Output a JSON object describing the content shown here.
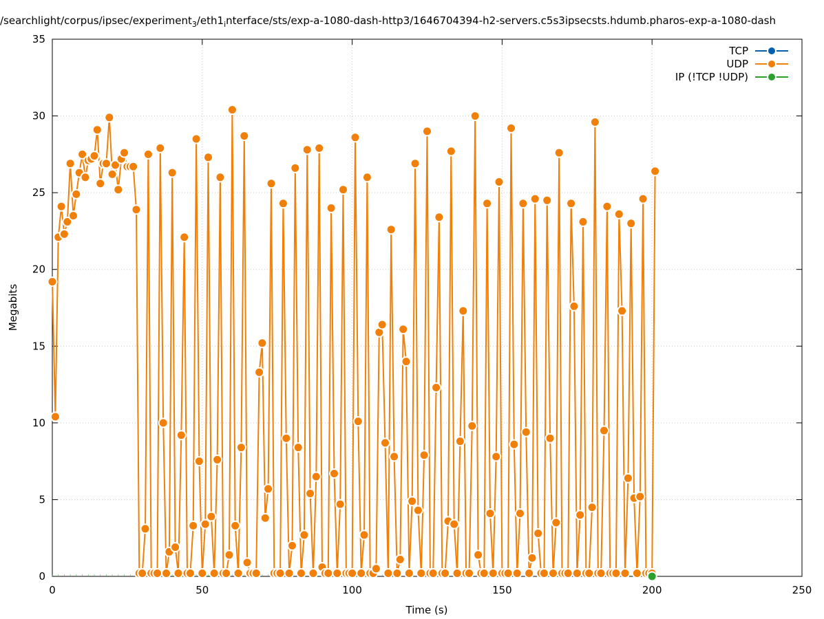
{
  "chart_data": {
    "type": "line",
    "title": "/searchlight/corpus/ipsec/experiment",
    "title_sub": "3",
    "title_mid": "/eth1",
    "title_sub2": "i",
    "title_end": "nterface/sts/exp-a-1080-dash-http3/1646704394-h2-servers.c5s3ipsecsts.hdumb.pharos-exp-a-1080-dash",
    "xlabel": "Time (s)",
    "ylabel": "Megabits",
    "xlim": [
      0,
      250
    ],
    "ylim": [
      0,
      35
    ],
    "xticks": [
      0,
      50,
      100,
      150,
      200,
      250
    ],
    "yticks": [
      0,
      5,
      10,
      15,
      20,
      25,
      30,
      35
    ],
    "grid": true,
    "legend_position": "top-right",
    "colors": {
      "TCP": "#0060ad",
      "UDP": "#f0800a",
      "IP": "#2ca02c"
    },
    "series": [
      {
        "name": "TCP",
        "x": [],
        "y": []
      },
      {
        "name": "UDP",
        "x": [
          0,
          1,
          2,
          3,
          4,
          5,
          6,
          7,
          8,
          9,
          10,
          11,
          12,
          13,
          14,
          15,
          16,
          17,
          18,
          19,
          20,
          21,
          22,
          23,
          24,
          25,
          26,
          27,
          28,
          29,
          30,
          31,
          32,
          33,
          34,
          35,
          36,
          37,
          38,
          39,
          40,
          41,
          42,
          43,
          44,
          45,
          46,
          47,
          48,
          49,
          50,
          51,
          52,
          53,
          54,
          55,
          56,
          57,
          58,
          59,
          60,
          61,
          62,
          63,
          64,
          65,
          66,
          67,
          68,
          69,
          70,
          71,
          72,
          73,
          74,
          75,
          76,
          77,
          78,
          79,
          80,
          81,
          82,
          83,
          84,
          85,
          86,
          87,
          88,
          89,
          90,
          91,
          92,
          93,
          94,
          95,
          96,
          97,
          98,
          99,
          100,
          101,
          102,
          103,
          104,
          105,
          106,
          107,
          108,
          109,
          110,
          111,
          112,
          113,
          114,
          115,
          116,
          117,
          118,
          119,
          120,
          121,
          122,
          123,
          124,
          125,
          126,
          127,
          128,
          129,
          130,
          131,
          132,
          133,
          134,
          135,
          136,
          137,
          138,
          139,
          140,
          141,
          142,
          143,
          144,
          145,
          146,
          147,
          148,
          149,
          150,
          151,
          152,
          153,
          154,
          155,
          156,
          157,
          158,
          159,
          160,
          161,
          162,
          163,
          164,
          165,
          166,
          167,
          168,
          169,
          170,
          171,
          172,
          173,
          174,
          175,
          176,
          177,
          178,
          179,
          180,
          181,
          182,
          183,
          184,
          185,
          186,
          187,
          188,
          189,
          190,
          191,
          192,
          193,
          194,
          195,
          196,
          197,
          198,
          199,
          200,
          201
        ],
        "y": [
          19.2,
          10.4,
          22.1,
          24.1,
          22.3,
          23.1,
          26.9,
          23.5,
          24.9,
          26.3,
          27.5,
          26.0,
          27.1,
          27.2,
          27.4,
          29.1,
          25.6,
          26.9,
          26.9,
          29.9,
          26.2,
          26.8,
          25.2,
          27.2,
          27.6,
          26.7,
          26.7,
          26.7,
          23.9,
          0.2,
          0.2,
          3.1,
          27.5,
          0.2,
          0.2,
          0.2,
          27.9,
          10.0,
          0.2,
          1.6,
          26.3,
          1.9,
          0.2,
          9.2,
          22.1,
          0.2,
          0.2,
          3.3,
          28.5,
          7.5,
          0.2,
          3.4,
          27.3,
          3.9,
          0.2,
          7.6,
          26.0,
          0.2,
          0.2,
          1.4,
          30.4,
          3.3,
          0.2,
          8.4,
          28.7,
          0.9,
          0.2,
          0.2,
          0.2,
          13.3,
          15.2,
          3.8,
          5.7,
          25.6,
          0.2,
          0.2,
          0.2,
          24.3,
          9.0,
          0.2,
          2.0,
          26.6,
          8.4,
          0.2,
          2.7,
          27.8,
          5.4,
          0.2,
          6.5,
          27.9,
          0.6,
          0.2,
          0.2,
          24.0,
          6.7,
          0.2,
          4.7,
          25.2,
          0.2,
          0.2,
          0.2,
          28.6,
          10.1,
          0.2,
          2.7,
          26.0,
          0.2,
          0.2,
          0.5,
          15.9,
          16.4,
          8.7,
          0.2,
          22.6,
          7.8,
          0.2,
          1.1,
          16.1,
          14.0,
          0.2,
          4.9,
          26.9,
          4.3,
          0.2,
          7.9,
          29.0,
          0.2,
          0.2,
          12.3,
          23.4,
          0.2,
          0.2,
          3.6,
          27.7,
          3.4,
          0.2,
          8.8,
          17.3,
          0.2,
          0.2,
          9.8,
          30.0,
          1.4,
          0.2,
          0.2,
          24.3,
          4.1,
          0.2,
          7.8,
          25.7,
          0.2,
          0.2,
          0.2,
          29.2,
          8.6,
          0.2,
          4.1,
          24.3,
          9.4,
          0.2,
          1.2,
          24.6,
          2.8,
          0.2,
          0.2,
          24.5,
          9.0,
          0.2,
          3.5,
          27.6,
          0.2,
          0.2,
          0.2,
          24.3,
          17.6,
          0.2,
          4.0,
          23.1,
          0.2,
          0.2,
          4.5,
          29.6,
          0.2,
          0.2,
          9.5,
          24.1,
          0.2,
          0.2,
          0.2,
          23.6,
          17.3,
          0.2,
          6.4,
          23.0,
          5.1,
          0.2,
          5.2,
          24.6,
          0.2,
          0.2,
          0.2,
          26.4
        ]
      },
      {
        "name": "IP (!TCP  !UDP)",
        "x": [
          200
        ],
        "y": [
          0
        ]
      }
    ]
  }
}
